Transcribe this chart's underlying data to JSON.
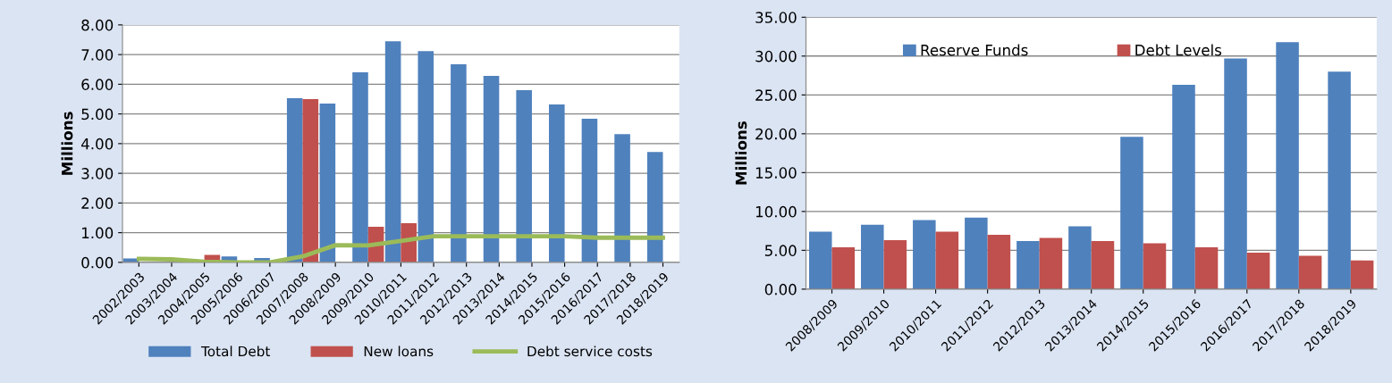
{
  "chart_data": [
    {
      "type": "bar",
      "ylabel": "Millions",
      "categories": [
        "2002/2003",
        "2003/2004",
        "2004/2005",
        "2005/2006",
        "2006/2007",
        "2007/2008",
        "2008/2009",
        "2009/2010",
        "2010/2011",
        "2011/2012",
        "2012/2013",
        "2013/2014",
        "2014/2015",
        "2015/2016",
        "2016/2017",
        "2017/2018",
        "2018/2019"
      ],
      "series": [
        {
          "name": "Total Debt",
          "color": "#4f81bd",
          "values": [
            0.13,
            null,
            null,
            0.2,
            0.15,
            5.53,
            5.35,
            6.4,
            7.45,
            7.12,
            6.67,
            6.28,
            5.8,
            5.32,
            4.84,
            4.32,
            3.72
          ]
        },
        {
          "name": "New loans",
          "color": "#c0504d",
          "values": [
            null,
            null,
            0.25,
            null,
            null,
            5.5,
            null,
            1.2,
            1.32,
            null,
            null,
            null,
            null,
            null,
            null,
            null,
            null
          ]
        },
        {
          "name": "Debt service costs",
          "color": "#9bbb59",
          "type": "line",
          "values": [
            0.12,
            0.1,
            0.02,
            0.0,
            0.0,
            0.2,
            0.58,
            0.57,
            0.72,
            0.88,
            0.88,
            0.88,
            0.88,
            0.88,
            0.83,
            0.83,
            0.83
          ]
        }
      ],
      "ylim": [
        0,
        8
      ],
      "yticks": [
        {
          "value": 0,
          "label": "0.00"
        },
        {
          "value": 1,
          "label": "1.00"
        },
        {
          "value": 2,
          "label": "2.00"
        },
        {
          "value": 3,
          "label": "3.00"
        },
        {
          "value": 4,
          "label": "4.00"
        },
        {
          "value": 5,
          "label": "5.00"
        },
        {
          "value": 6,
          "label": "6.00"
        },
        {
          "value": 7,
          "label": "7.00"
        },
        {
          "value": 8,
          "label": "8.00"
        }
      ],
      "grid": "y",
      "legend": "bottom",
      "marker": "none"
    },
    {
      "type": "bar",
      "ylabel": "Millions",
      "categories": [
        "2008/2009",
        "2009/2010",
        "2010/2011",
        "2011/2012",
        "2012/2013",
        "2013/2014",
        "2014/2015",
        "2015/2016",
        "2016/2017",
        "2017/2018",
        "2018/2019"
      ],
      "series": [
        {
          "name": "Reserve Funds",
          "color": "#4f81bd",
          "values": [
            7.4,
            8.3,
            8.9,
            9.2,
            6.2,
            8.1,
            19.6,
            26.3,
            29.7,
            31.8,
            28.0
          ]
        },
        {
          "name": "Debt Levels",
          "color": "#c0504d",
          "values": [
            5.4,
            6.3,
            7.4,
            7.0,
            6.6,
            6.2,
            5.9,
            5.4,
            4.7,
            4.3,
            3.7
          ]
        }
      ],
      "ylim": [
        0,
        35
      ],
      "yticks": [
        {
          "value": 0,
          "label": "0.00"
        },
        {
          "value": 5,
          "label": "5.00"
        },
        {
          "value": 10,
          "label": "10.00"
        },
        {
          "value": 15,
          "label": "15.00"
        },
        {
          "value": 20,
          "label": "20.00"
        },
        {
          "value": 25,
          "label": "25.00"
        },
        {
          "value": 30,
          "label": "30.00"
        },
        {
          "value": 35,
          "label": "35.00"
        }
      ],
      "grid": "y",
      "legend": "top"
    }
  ]
}
